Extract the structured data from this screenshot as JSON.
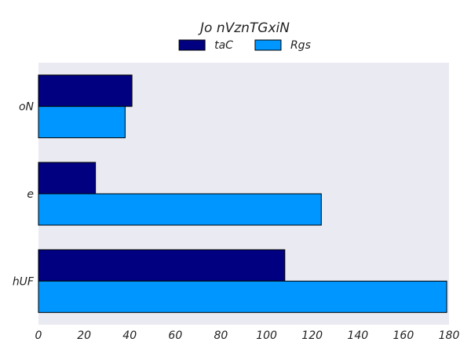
{
  "chart_data": {
    "type": "bar",
    "orientation": "horizontal",
    "title": "Jo nVznTGxiN",
    "categories": [
      "oN",
      "e",
      "hUF"
    ],
    "series": [
      {
        "name": "taC",
        "color": "#000080",
        "values": [
          41,
          25,
          108
        ]
      },
      {
        "name": "Rgs",
        "color": "#0096FF",
        "values": [
          38,
          124,
          179
        ]
      }
    ],
    "xlim": [
      0,
      180
    ],
    "xticks": [
      0,
      20,
      40,
      60,
      80,
      100,
      120,
      140,
      160,
      180
    ],
    "xlabel": "",
    "ylabel": "",
    "grid": false,
    "legend_position": "top-center",
    "plot_background": "#EAEAF2"
  }
}
